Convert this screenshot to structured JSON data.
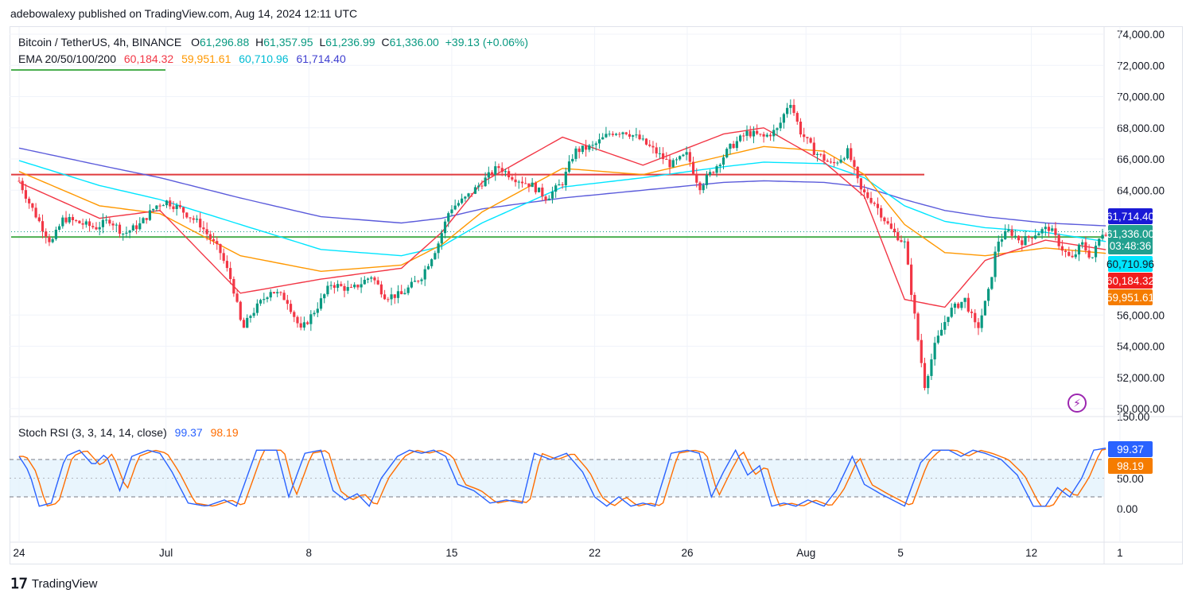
{
  "header": {
    "published": "adebowalexy published on TradingView.com, Aug 14, 2024 12:11 UTC"
  },
  "legend": {
    "symbol": "Bitcoin / TetherUS, 4h, BINANCE",
    "o_label": "O",
    "o_value": "61,296.88",
    "h_label": "H",
    "h_value": "61,357.95",
    "l_label": "L",
    "l_value": "61,236.99",
    "c_label": "C",
    "c_value": "61,336.00",
    "change": "+39.13 (+0.06%)",
    "ema_label": "EMA 20/50/100/200",
    "ema20": "60,184.32",
    "ema50": "59,951.61",
    "ema100": "60,710.96",
    "ema200": "61,714.40"
  },
  "stoch": {
    "label": "Stoch RSI (3, 3, 14, 14, close)",
    "k": "99.37",
    "d": "98.19"
  },
  "price_tags": {
    "ema200": "61,714.40",
    "last": "61,336.00",
    "countdown": "03:48:36",
    "ema100": "60,710.96",
    "ema20": "60,184.32",
    "ema50": "59,951.61",
    "stoch_k": "99.37",
    "stoch_d": "98.19"
  },
  "footer": {
    "brand": "TradingView"
  },
  "colors": {
    "up": "#089981",
    "down": "#f23645",
    "ema20": "#f23645",
    "ema50": "#ff9800",
    "ema100": "#00e5ff",
    "ema200": "#5b5bdb",
    "stoch_k": "#2962ff",
    "stoch_d": "#ff6d00",
    "resistance": "#e03a3e",
    "support": "#4caf50"
  },
  "chart_data": {
    "type": "candlestick",
    "title": "Bitcoin / TetherUS, 4h, BINANCE",
    "y_ticks": [
      "74,000.00",
      "72,000.00",
      "70,000.00",
      "68,000.00",
      "66,000.00",
      "64,000.00",
      "56,000.00",
      "54,000.00",
      "52,000.00",
      "50,000.00"
    ],
    "ylim": [
      50000,
      74000
    ],
    "x_ticks": [
      "24",
      "Jul",
      "8",
      "15",
      "22",
      "26",
      "Aug",
      "5",
      "12",
      "1"
    ],
    "resistance_level": 65000,
    "support_level": 61000,
    "last_price": 61336,
    "ema_keys": [
      {
        "day": 0,
        "ema20": 64500,
        "ema50": 65200,
        "ema100": 65900,
        "ema200": 66700
      },
      {
        "day": 4,
        "ema20": 62200,
        "ema50": 63000,
        "ema100": 64300,
        "ema200": 65600
      },
      {
        "day": 7,
        "ema20": 62700,
        "ema50": 62500,
        "ema100": 63400,
        "ema200": 64800
      },
      {
        "day": 11,
        "ema20": 57400,
        "ema50": 59800,
        "ema100": 61800,
        "ema200": 63500
      },
      {
        "day": 15,
        "ema20": 58300,
        "ema50": 58800,
        "ema100": 60200,
        "ema200": 62300
      },
      {
        "day": 19,
        "ema20": 59000,
        "ema50": 59200,
        "ema100": 59800,
        "ema200": 61900
      },
      {
        "day": 21,
        "ema20": 61300,
        "ema50": 60500,
        "ema100": 60400,
        "ema200": 62200
      },
      {
        "day": 23,
        "ema20": 64500,
        "ema50": 62600,
        "ema100": 61900,
        "ema200": 62800
      },
      {
        "day": 27,
        "ema20": 67400,
        "ema50": 65400,
        "ema100": 64200,
        "ema200": 63500
      },
      {
        "day": 31,
        "ema20": 65600,
        "ema50": 65000,
        "ema100": 64800,
        "ema200": 64000
      },
      {
        "day": 35,
        "ema20": 67600,
        "ema50": 66200,
        "ema100": 65500,
        "ema200": 64500
      },
      {
        "day": 37,
        "ema20": 68000,
        "ema50": 66800,
        "ema100": 65800,
        "ema200": 64600
      },
      {
        "day": 40,
        "ema20": 65800,
        "ema50": 66500,
        "ema100": 65700,
        "ema200": 64500
      },
      {
        "day": 42,
        "ema20": 63600,
        "ema50": 65000,
        "ema100": 64800,
        "ema200": 64200
      },
      {
        "day": 44,
        "ema20": 57000,
        "ema50": 61800,
        "ema100": 63000,
        "ema200": 63400
      },
      {
        "day": 46,
        "ema20": 56500,
        "ema50": 60000,
        "ema100": 62000,
        "ema200": 62700
      },
      {
        "day": 48,
        "ema20": 59500,
        "ema50": 59800,
        "ema100": 61600,
        "ema200": 62300
      },
      {
        "day": 51,
        "ema20": 60800,
        "ema50": 60300,
        "ema100": 61300,
        "ema200": 61900
      },
      {
        "day": 54,
        "ema20": 60184,
        "ema50": 59952,
        "ema100": 60711,
        "ema200": 61714
      }
    ],
    "close_keys": [
      {
        "day": 0,
        "close": 64600
      },
      {
        "day": 0.5,
        "close": 63200
      },
      {
        "day": 1.2,
        "close": 61500
      },
      {
        "day": 1.6,
        "close": 60600
      },
      {
        "day": 2.2,
        "close": 62200
      },
      {
        "day": 3,
        "close": 61900
      },
      {
        "day": 3.8,
        "close": 61600
      },
      {
        "day": 4.5,
        "close": 62100
      },
      {
        "day": 5.2,
        "close": 61200
      },
      {
        "day": 6,
        "close": 61800
      },
      {
        "day": 6.8,
        "close": 63000
      },
      {
        "day": 7.3,
        "close": 63300
      },
      {
        "day": 8,
        "close": 62800
      },
      {
        "day": 9,
        "close": 61800
      },
      {
        "day": 10,
        "close": 60000
      },
      {
        "day": 10.6,
        "close": 58000
      },
      {
        "day": 11.1,
        "close": 55000
      },
      {
        "day": 11.5,
        "close": 56000
      },
      {
        "day": 12.5,
        "close": 57600
      },
      {
        "day": 13.3,
        "close": 57000
      },
      {
        "day": 14,
        "close": 55000
      },
      {
        "day": 14.8,
        "close": 56500
      },
      {
        "day": 15.5,
        "close": 58000
      },
      {
        "day": 16.5,
        "close": 57600
      },
      {
        "day": 17.5,
        "close": 58500
      },
      {
        "day": 18.2,
        "close": 57200
      },
      {
        "day": 19,
        "close": 57300
      },
      {
        "day": 20,
        "close": 58500
      },
      {
        "day": 20.8,
        "close": 60500
      },
      {
        "day": 21.4,
        "close": 62800
      },
      {
        "day": 22.2,
        "close": 63500
      },
      {
        "day": 23,
        "close": 64500
      },
      {
        "day": 23.8,
        "close": 65500
      },
      {
        "day": 24.6,
        "close": 64800
      },
      {
        "day": 25.5,
        "close": 64300
      },
      {
        "day": 26.2,
        "close": 63500
      },
      {
        "day": 27,
        "close": 64500
      },
      {
        "day": 27.6,
        "close": 66500
      },
      {
        "day": 28.5,
        "close": 66800
      },
      {
        "day": 29.4,
        "close": 67700
      },
      {
        "day": 30.1,
        "close": 67800
      },
      {
        "day": 30.8,
        "close": 67300
      },
      {
        "day": 31.6,
        "close": 66500
      },
      {
        "day": 32.4,
        "close": 65600
      },
      {
        "day": 33.2,
        "close": 66300
      },
      {
        "day": 33.8,
        "close": 64200
      },
      {
        "day": 34.5,
        "close": 65300
      },
      {
        "day": 35.3,
        "close": 66700
      },
      {
        "day": 36.2,
        "close": 67700
      },
      {
        "day": 37,
        "close": 67400
      },
      {
        "day": 37.7,
        "close": 67900
      },
      {
        "day": 38.3,
        "close": 69800
      },
      {
        "day": 38.8,
        "close": 67800
      },
      {
        "day": 39.5,
        "close": 66500
      },
      {
        "day": 40.4,
        "close": 65600
      },
      {
        "day": 41.2,
        "close": 66500
      },
      {
        "day": 41.8,
        "close": 64000
      },
      {
        "day": 42.5,
        "close": 63200
      },
      {
        "day": 43.3,
        "close": 61500
      },
      {
        "day": 44,
        "close": 60600
      },
      {
        "day": 44.6,
        "close": 55000
      },
      {
        "day": 45,
        "close": 51500
      },
      {
        "day": 45.5,
        "close": 54000
      },
      {
        "day": 46.2,
        "close": 56200
      },
      {
        "day": 47,
        "close": 57000
      },
      {
        "day": 47.6,
        "close": 55000
      },
      {
        "day": 48.2,
        "close": 57600
      },
      {
        "day": 48.6,
        "close": 60700
      },
      {
        "day": 49.2,
        "close": 61400
      },
      {
        "day": 49.8,
        "close": 60700
      },
      {
        "day": 50.6,
        "close": 61300
      },
      {
        "day": 51.2,
        "close": 61600
      },
      {
        "day": 51.8,
        "close": 60300
      },
      {
        "day": 52.3,
        "close": 59500
      },
      {
        "day": 52.8,
        "close": 60600
      },
      {
        "day": 53.3,
        "close": 59600
      },
      {
        "day": 53.8,
        "close": 61300
      },
      {
        "day": 54.2,
        "close": 61336
      }
    ],
    "stoch_panel": {
      "y_ticks": [
        "150.00",
        "50.00",
        "0.00"
      ],
      "bands": [
        20,
        50,
        80
      ],
      "k_keys": [
        {
          "day": 0,
          "v": 85
        },
        {
          "day": 0.5,
          "v": 60
        },
        {
          "day": 1,
          "v": 5
        },
        {
          "day": 1.6,
          "v": 10
        },
        {
          "day": 2.3,
          "v": 85
        },
        {
          "day": 3,
          "v": 95
        },
        {
          "day": 3.7,
          "v": 70
        },
        {
          "day": 4.3,
          "v": 90
        },
        {
          "day": 5,
          "v": 30
        },
        {
          "day": 5.6,
          "v": 85
        },
        {
          "day": 6.4,
          "v": 95
        },
        {
          "day": 7,
          "v": 90
        },
        {
          "day": 7.6,
          "v": 60
        },
        {
          "day": 8.4,
          "v": 10
        },
        {
          "day": 9.3,
          "v": 5
        },
        {
          "day": 10.2,
          "v": 15
        },
        {
          "day": 10.8,
          "v": 5
        },
        {
          "day": 11.8,
          "v": 95
        },
        {
          "day": 12.8,
          "v": 95
        },
        {
          "day": 13.4,
          "v": 20
        },
        {
          "day": 14.2,
          "v": 90
        },
        {
          "day": 15,
          "v": 95
        },
        {
          "day": 15.6,
          "v": 30
        },
        {
          "day": 16.2,
          "v": 15
        },
        {
          "day": 16.8,
          "v": 25
        },
        {
          "day": 17.4,
          "v": 5
        },
        {
          "day": 18,
          "v": 50
        },
        {
          "day": 18.8,
          "v": 85
        },
        {
          "day": 19.4,
          "v": 95
        },
        {
          "day": 20,
          "v": 90
        },
        {
          "day": 20.6,
          "v": 95
        },
        {
          "day": 21.2,
          "v": 85
        },
        {
          "day": 21.8,
          "v": 40
        },
        {
          "day": 22.6,
          "v": 30
        },
        {
          "day": 23.4,
          "v": 10
        },
        {
          "day": 24.2,
          "v": 15
        },
        {
          "day": 25,
          "v": 10
        },
        {
          "day": 25.6,
          "v": 90
        },
        {
          "day": 26.4,
          "v": 80
        },
        {
          "day": 27.2,
          "v": 90
        },
        {
          "day": 28,
          "v": 60
        },
        {
          "day": 28.6,
          "v": 20
        },
        {
          "day": 29.2,
          "v": 5
        },
        {
          "day": 29.8,
          "v": 20
        },
        {
          "day": 30.4,
          "v": 5
        },
        {
          "day": 31,
          "v": 10
        },
        {
          "day": 31.6,
          "v": 5
        },
        {
          "day": 32.4,
          "v": 90
        },
        {
          "day": 33.2,
          "v": 95
        },
        {
          "day": 33.8,
          "v": 90
        },
        {
          "day": 34.4,
          "v": 20
        },
        {
          "day": 35,
          "v": 60
        },
        {
          "day": 35.6,
          "v": 95
        },
        {
          "day": 36.2,
          "v": 55
        },
        {
          "day": 36.8,
          "v": 70
        },
        {
          "day": 37.4,
          "v": 5
        },
        {
          "day": 38,
          "v": 10
        },
        {
          "day": 38.6,
          "v": 5
        },
        {
          "day": 39.2,
          "v": 15
        },
        {
          "day": 40,
          "v": 5
        },
        {
          "day": 40.6,
          "v": 30
        },
        {
          "day": 41.4,
          "v": 85
        },
        {
          "day": 42,
          "v": 40
        },
        {
          "day": 42.8,
          "v": 25
        },
        {
          "day": 43.4,
          "v": 15
        },
        {
          "day": 44,
          "v": 5
        },
        {
          "day": 44.8,
          "v": 75
        },
        {
          "day": 45.4,
          "v": 95
        },
        {
          "day": 46.2,
          "v": 95
        },
        {
          "day": 46.8,
          "v": 85
        },
        {
          "day": 47.4,
          "v": 95
        },
        {
          "day": 48,
          "v": 90
        },
        {
          "day": 48.8,
          "v": 80
        },
        {
          "day": 49.6,
          "v": 55
        },
        {
          "day": 50.4,
          "v": 5
        },
        {
          "day": 51,
          "v": 5
        },
        {
          "day": 51.6,
          "v": 35
        },
        {
          "day": 52.2,
          "v": 20
        },
        {
          "day": 52.8,
          "v": 50
        },
        {
          "day": 53.4,
          "v": 95
        },
        {
          "day": 54.2,
          "v": 99.37
        }
      ]
    }
  }
}
